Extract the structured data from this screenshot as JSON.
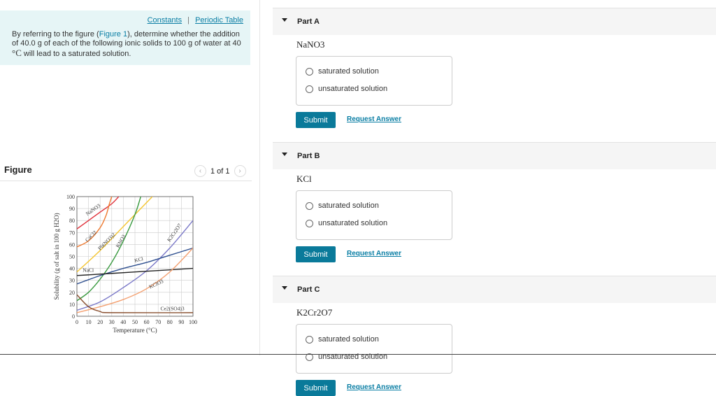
{
  "intro": {
    "links": {
      "constants": "Constants",
      "separator": "|",
      "periodic_table": "Periodic Table"
    },
    "prompt_before": "By referring to the figure (",
    "figure_link": "Figure 1",
    "prompt_after": "), determine whether the addition of 40.0 g of each of the following ionic solids to 100 g of water at 40 ",
    "prompt_unit": "°C",
    "prompt_end": " will lead to a saturated solution."
  },
  "figure": {
    "title": "Figure",
    "pager": "1 of 1",
    "prev_icon": "chevron-left-icon",
    "next_icon": "chevron-right-icon"
  },
  "parts": [
    {
      "label": "Part A",
      "formula": "NaNO3",
      "options": [
        "saturated solution",
        "unsaturated solution"
      ],
      "submit": "Submit",
      "request": "Request Answer"
    },
    {
      "label": "Part B",
      "formula": "KCl",
      "options": [
        "saturated solution",
        "unsaturated solution"
      ],
      "submit": "Submit",
      "request": "Request Answer"
    },
    {
      "label": "Part C",
      "formula": "K2Cr2O7",
      "options": [
        "saturated solution",
        "unsaturated solution"
      ],
      "submit": "Submit",
      "request": "Request Answer"
    }
  ],
  "colors": {
    "accent": "#0a7a9a",
    "link": "#0a7ea4",
    "intro_bg": "#e6f5f6"
  },
  "chart_data": {
    "type": "line",
    "xlabel": "Temperature (°C)",
    "ylabel": "Solubility (g of salt in 100 g H2O)",
    "xlim": [
      0,
      100
    ],
    "ylim": [
      0,
      100
    ],
    "grid": true,
    "xticks": [
      "0",
      "10",
      "20",
      "30",
      "40",
      "50",
      "60",
      "70",
      "80",
      "90",
      "100"
    ],
    "yticks": [
      "0",
      "10",
      "20",
      "30",
      "40",
      "50",
      "60",
      "70",
      "80",
      "90",
      "100"
    ],
    "series": [
      {
        "name": "NaNO3",
        "color": "#e0303a",
        "x": [
          0,
          10,
          20,
          30,
          36
        ],
        "y": [
          73,
          80,
          87,
          94,
          100
        ]
      },
      {
        "name": "CaCl2",
        "color": "#ee7a30",
        "x": [
          0,
          10,
          20,
          25,
          28,
          30
        ],
        "y": [
          58,
          63,
          74,
          84,
          94,
          100
        ]
      },
      {
        "name": "Pb(NO3)2",
        "color": "#f4c530",
        "x": [
          0,
          20,
          40,
          65
        ],
        "y": [
          37,
          55,
          75,
          100
        ]
      },
      {
        "name": "KNO3",
        "color": "#3a9a40",
        "x": [
          0,
          10,
          20,
          30,
          40,
          50,
          55
        ],
        "y": [
          13,
          20,
          31,
          45,
          63,
          85,
          100
        ]
      },
      {
        "name": "K2Cr2O7",
        "color": "#7a78c8",
        "x": [
          0,
          20,
          40,
          60,
          80,
          100
        ],
        "y": [
          5,
          12,
          24,
          38,
          57,
          80
        ]
      },
      {
        "name": "KCl",
        "color": "#2e4f8f",
        "x": [
          0,
          20,
          40,
          60,
          80,
          100
        ],
        "y": [
          27,
          34,
          40,
          45,
          51,
          57
        ]
      },
      {
        "name": "NaCl",
        "color": "#222222",
        "x": [
          0,
          50,
          100
        ],
        "y": [
          34,
          37,
          40
        ]
      },
      {
        "name": "KClO3",
        "color": "#f4a070",
        "x": [
          0,
          20,
          40,
          60,
          80,
          100
        ],
        "y": [
          3,
          8,
          14,
          23,
          37,
          57
        ]
      },
      {
        "name": "Ce2(SO4)3",
        "color": "#8a5030",
        "x": [
          0,
          10,
          20,
          30,
          100
        ],
        "y": [
          18,
          8,
          4,
          3,
          3
        ]
      }
    ],
    "labels": [
      {
        "text": "NaNO3",
        "x": 9,
        "y": 84,
        "rot": -35
      },
      {
        "text": "CaCl2",
        "x": 9,
        "y": 62,
        "rot": -45
      },
      {
        "text": "Pb(NO3)2",
        "x": 20,
        "y": 55,
        "rot": -45
      },
      {
        "text": "KNO3",
        "x": 36,
        "y": 57,
        "rot": -60
      },
      {
        "text": "K2Cr2O7",
        "x": 80,
        "y": 62,
        "rot": -55
      },
      {
        "text": "KCl",
        "x": 50,
        "y": 45,
        "rot": -15
      },
      {
        "text": "NaCl",
        "x": 5,
        "y": 37,
        "rot": 0
      },
      {
        "text": "KClO3",
        "x": 63,
        "y": 23,
        "rot": -25
      },
      {
        "text": "Ce2(SO4)3",
        "x": 72,
        "y": 5,
        "rot": 0
      }
    ]
  }
}
